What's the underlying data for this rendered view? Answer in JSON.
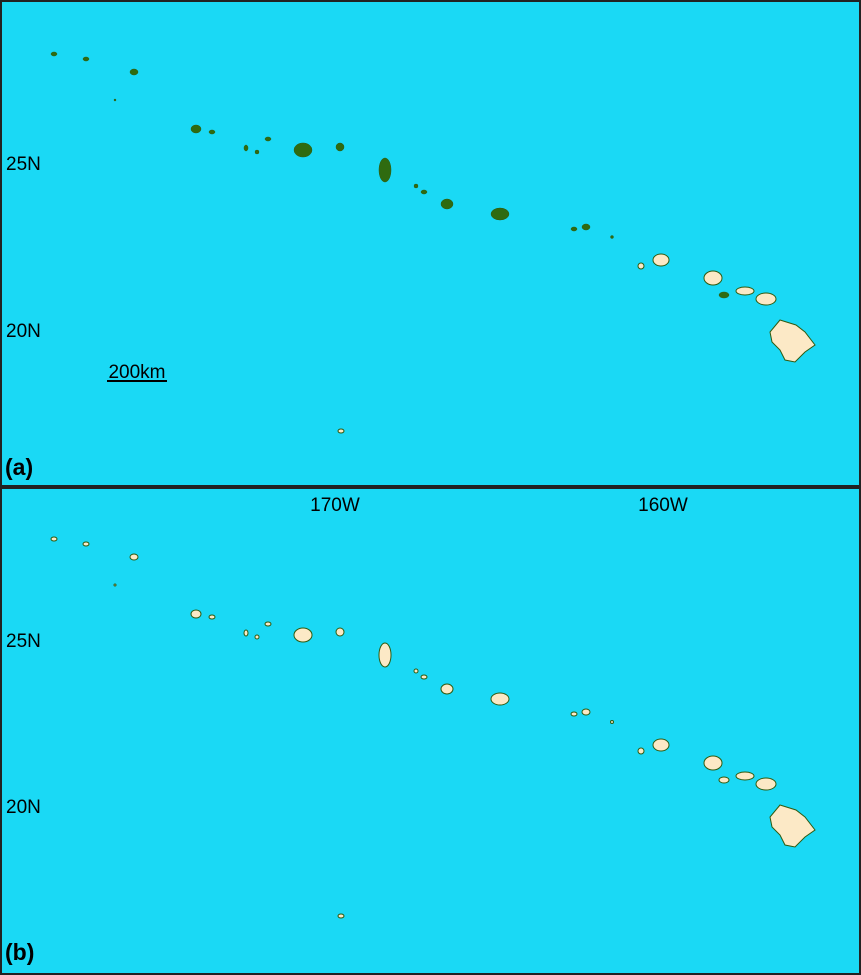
{
  "panels": [
    {
      "label": "(a)",
      "lat_labels": [
        "25N",
        "20N"
      ],
      "scale_bar": "200km"
    },
    {
      "label": "(b)",
      "lon_labels": [
        "170W",
        "160W"
      ],
      "lat_labels": [
        "25N",
        "20N"
      ]
    }
  ]
}
